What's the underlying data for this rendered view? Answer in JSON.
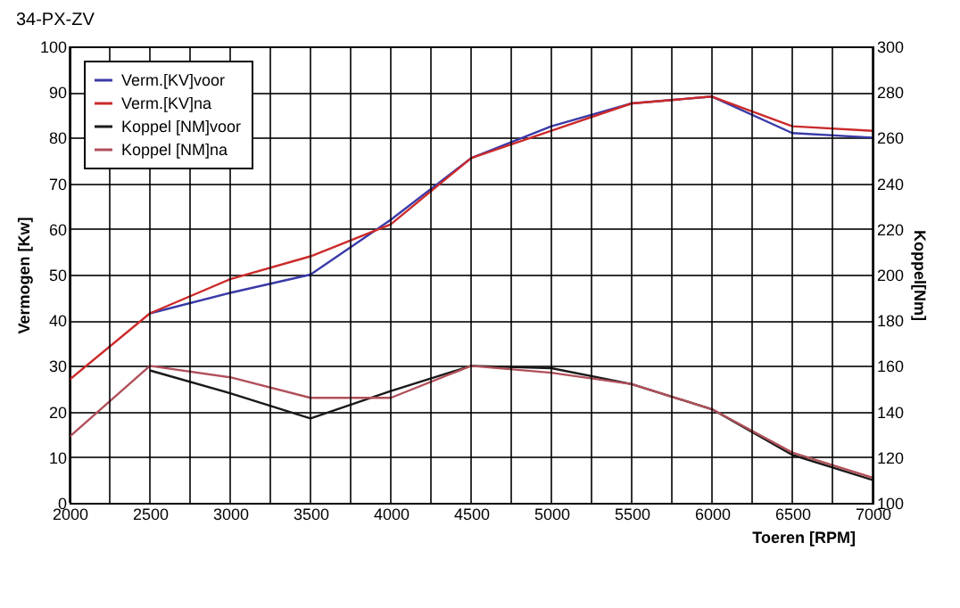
{
  "chart_data": {
    "type": "line",
    "title": "34-PX-ZV",
    "xlabel": "Toeren [RPM]",
    "ylabel": "Vermogen [Kw]",
    "y2label": "Koppel[Nm]",
    "x": [
      2000,
      2500,
      3000,
      3500,
      4000,
      4500,
      5000,
      5500,
      6000,
      6500,
      7000
    ],
    "xlim": [
      2000,
      7000
    ],
    "xticks": [
      2000,
      {
        "value": 2250,
        "label": null
      },
      2500,
      {
        "value": 2750,
        "label": null
      },
      3000,
      {
        "value": 3250,
        "label": null
      },
      3500,
      {
        "value": 3750,
        "label": null
      },
      4000,
      {
        "value": 4250,
        "label": null
      },
      4500,
      {
        "value": 4750,
        "label": null
      },
      5000,
      {
        "value": 5250,
        "label": null
      },
      5500,
      {
        "value": 5750,
        "label": null
      },
      6000,
      {
        "value": 6250,
        "label": null
      },
      6500,
      {
        "value": 6750,
        "label": null
      },
      7000
    ],
    "ylim": [
      0,
      100
    ],
    "yticks": [
      0,
      10,
      20,
      30,
      40,
      50,
      60,
      70,
      80,
      90,
      100
    ],
    "y2lim": [
      100,
      300
    ],
    "y2ticks": [
      100,
      120,
      140,
      160,
      180,
      200,
      220,
      240,
      260,
      280,
      300
    ],
    "grid": true,
    "legend": "top left",
    "marker": "none",
    "line_style": "solid",
    "series": [
      {
        "name": "Verm.[KV]voor",
        "color": "#3a3aa8",
        "values": [
          null,
          41.5,
          46,
          50,
          62,
          75.5,
          82.5,
          87.5,
          89,
          81,
          80
        ]
      },
      {
        "name": "Verm.[KV]na",
        "color": "#cc2a2a",
        "values": [
          27,
          41.5,
          49,
          54,
          61,
          75.5,
          81.5,
          87.5,
          89,
          82.5,
          81.5
        ]
      },
      {
        "name": "Koppel [NM]voor",
        "color": "#1a1a1a",
        "axis": "y2",
        "values": [
          null,
          158,
          148,
          137,
          149,
          160,
          159,
          152,
          141,
          121,
          110
        ]
      },
      {
        "name": "Koppel [NM]na",
        "color": "#b0505a",
        "axis": "y2",
        "values": [
          129,
          160,
          155,
          146,
          146,
          160,
          157,
          152,
          141,
          122,
          111
        ]
      }
    ]
  }
}
